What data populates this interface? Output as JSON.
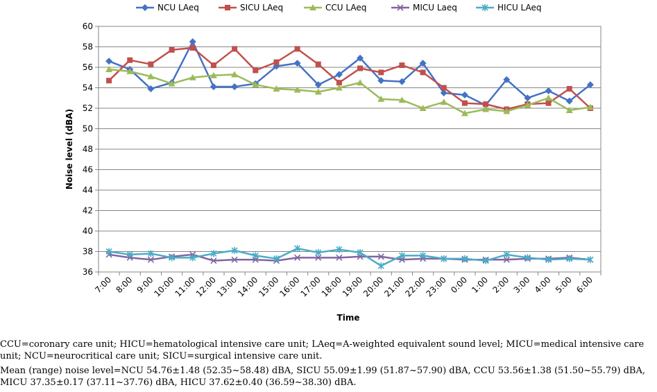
{
  "chart_data": {
    "type": "line",
    "title": "",
    "xlabel": "Time",
    "ylabel": "Noise level (dBA)",
    "ylim": [
      36,
      60
    ],
    "yticks": [
      36,
      38,
      40,
      42,
      44,
      46,
      48,
      50,
      52,
      54,
      56,
      58,
      60
    ],
    "grid": "horizontal",
    "legend_position": "top",
    "categories": [
      "7:00",
      "8:00",
      "9:00",
      "10:00",
      "11:00",
      "12:00",
      "13:00",
      "14:00",
      "15:00",
      "16:00",
      "17:00",
      "18:00",
      "19:00",
      "20:00",
      "21:00",
      "22:00",
      "23:00",
      "0:00",
      "1:00",
      "2:00",
      "3:00",
      "4:00",
      "5:00",
      "6:00"
    ],
    "series": [
      {
        "name": "NCU LAeq",
        "color": "#4472C4",
        "marker": "diamond",
        "values": [
          56.6,
          55.8,
          53.9,
          54.5,
          58.5,
          54.1,
          54.1,
          54.4,
          56.1,
          56.4,
          54.3,
          55.3,
          56.9,
          54.7,
          54.6,
          56.4,
          53.5,
          53.3,
          52.3,
          54.8,
          53.0,
          53.7,
          52.7,
          54.3
        ]
      },
      {
        "name": "SICU LAeq",
        "color": "#C0504D",
        "marker": "square",
        "values": [
          54.7,
          56.7,
          56.3,
          57.7,
          57.9,
          56.2,
          57.8,
          55.7,
          56.5,
          57.8,
          56.3,
          54.5,
          55.9,
          55.5,
          56.2,
          55.5,
          54.0,
          52.5,
          52.4,
          51.9,
          52.4,
          52.5,
          53.9,
          52.0
        ]
      },
      {
        "name": "CCU LAeq",
        "color": "#9BBB59",
        "marker": "triangle",
        "values": [
          55.8,
          55.6,
          55.1,
          54.4,
          55.0,
          55.2,
          55.3,
          54.3,
          53.9,
          53.8,
          53.6,
          54.0,
          54.5,
          52.9,
          52.8,
          52.0,
          52.6,
          51.5,
          51.9,
          51.7,
          52.3,
          53.0,
          51.8,
          52.1
        ]
      },
      {
        "name": "MICU Laeq",
        "color": "#8064A2",
        "marker": "x",
        "values": [
          37.7,
          37.4,
          37.2,
          37.5,
          37.7,
          37.1,
          37.2,
          37.2,
          37.1,
          37.4,
          37.4,
          37.4,
          37.5,
          37.5,
          37.2,
          37.3,
          37.3,
          37.2,
          37.2,
          37.2,
          37.3,
          37.3,
          37.4,
          37.2
        ]
      },
      {
        "name": "HICU LAeq",
        "color": "#4BACC6",
        "marker": "star",
        "values": [
          38.0,
          37.7,
          37.8,
          37.4,
          37.4,
          37.8,
          38.1,
          37.6,
          37.3,
          38.3,
          37.9,
          38.2,
          37.9,
          36.6,
          37.6,
          37.6,
          37.3,
          37.3,
          37.1,
          37.7,
          37.4,
          37.2,
          37.3,
          37.2
        ]
      }
    ]
  },
  "notes": {
    "abbreviations": "CCU=coronary care unit; HICU=hematological intensive care unit; LAeq=A-weighted equivalent sound level; MICU=medical intensive care unit; NCU=neurocritical care unit; SICU=surgical intensive care unit.",
    "summary": "Mean (range) noise level=NCU 54.76±1.48 (52.35~58.48) dBA, SICU 55.09±1.99 (51.87~57.90) dBA, CCU 53.56±1.38 (51.50~55.79) dBA, MICU 37.35±0.17 (37.11~37.76) dBA, HICU 37.62±0.40 (36.59~38.30) dBA."
  }
}
